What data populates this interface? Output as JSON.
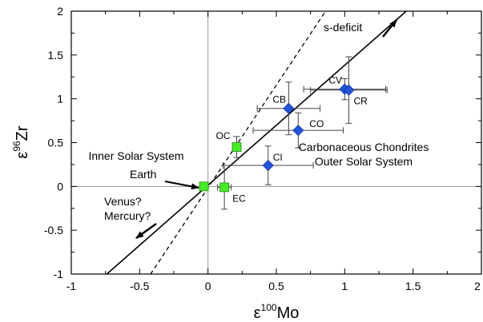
{
  "chart_data": {
    "type": "scatter",
    "xlabel": {
      "base": "ε",
      "sup": "100",
      "main": "Mo"
    },
    "ylabel": {
      "base": "ε",
      "sup": "96",
      "main": "Zr"
    },
    "xlim": [
      -1,
      2
    ],
    "ylim": [
      -1,
      2
    ],
    "xticks": [
      "-1",
      "-0.5",
      "0",
      "0.5",
      "1",
      "1.5",
      "2"
    ],
    "yticks": [
      "-1",
      "-0.5",
      "0",
      "0.5",
      "1",
      "1.5",
      "2"
    ],
    "grid": false,
    "zero_lines": true,
    "series": [
      {
        "marker": "square",
        "color": "#44ee22",
        "points": [
          {
            "label": "Earth",
            "x": -0.03,
            "y": 0.0,
            "xerr": 0.0,
            "yerr": 0.0
          },
          {
            "label": "OC",
            "x": 0.21,
            "y": 0.45,
            "xerr": 0.03,
            "yerr": 0.12
          },
          {
            "label": "EC",
            "x": 0.12,
            "y": -0.01,
            "xerr": 0.05,
            "yerr": 0.25
          }
        ]
      },
      {
        "marker": "diamond",
        "color": "#2255dd",
        "points": [
          {
            "label": "CI",
            "x": 0.44,
            "y": 0.24,
            "xerr": 0.33,
            "yerr": 0.22
          },
          {
            "label": "CO",
            "x": 0.66,
            "y": 0.64,
            "xerr": 0.33,
            "yerr": 0.2
          },
          {
            "label": "CB",
            "x": 0.59,
            "y": 0.89,
            "xerr": 0.23,
            "yerr": 0.3
          },
          {
            "label": "CV",
            "x": 1.0,
            "y": 1.11,
            "xerr": 0.3,
            "yerr": 0.12
          },
          {
            "label": "CR",
            "x": 1.03,
            "y": 1.1,
            "xerr": 0.28,
            "yerr": 0.38
          }
        ]
      }
    ],
    "lines": [
      {
        "style": "solid",
        "x1": -0.74,
        "y1": -1.0,
        "x2": 1.45,
        "y2": 2.0
      },
      {
        "style": "dashed",
        "x1": -0.42,
        "y1": -1.0,
        "x2": 0.86,
        "y2": 2.0
      }
    ],
    "annotations": {
      "s_deficit": "s-deficit",
      "inner_solar_system": "Inner Solar System",
      "earth": "Earth",
      "venus": "Venus?",
      "mercury": "Mercury?",
      "carbonaceous_chondrites": "Carbonaceous Chondrites",
      "outer_solar_system": "Outer Solar System"
    }
  }
}
